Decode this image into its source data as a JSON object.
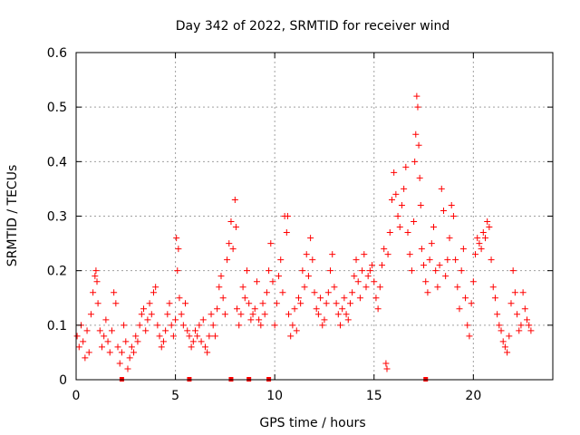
{
  "chart_data": {
    "type": "scatter",
    "title": "Day 342 of 2022, SRMTID for receiver wind",
    "xlabel": "GPS time / hours",
    "ylabel": "SRMTID / TECUs",
    "xlim": [
      0,
      24
    ],
    "ylim": [
      0,
      0.6
    ],
    "xticks": [
      0,
      5,
      10,
      15,
      20
    ],
    "yticks": [
      0,
      0.1,
      0.2,
      0.3,
      0.4,
      0.5,
      0.6
    ],
    "xtick_labels": [
      "0",
      "5",
      "10",
      "15",
      "20"
    ],
    "ytick_labels": [
      "0",
      "0.1",
      "0.2",
      "0.3",
      "0.4",
      "0.5",
      "0.6"
    ],
    "grid": true,
    "marker": "plus",
    "color": "#ff0000",
    "series": [
      {
        "name": "SRMTID",
        "points": [
          [
            0.05,
            0.08
          ],
          [
            0.15,
            0.06
          ],
          [
            0.25,
            0.1
          ],
          [
            0.35,
            0.07
          ],
          [
            0.45,
            0.04
          ],
          [
            0.55,
            0.09
          ],
          [
            0.65,
            0.05
          ],
          [
            0.75,
            0.12
          ],
          [
            0.85,
            0.16
          ],
          [
            0.95,
            0.19
          ],
          [
            1.0,
            0.2
          ],
          [
            1.05,
            0.18
          ],
          [
            1.1,
            0.14
          ],
          [
            1.2,
            0.09
          ],
          [
            1.3,
            0.06
          ],
          [
            1.4,
            0.08
          ],
          [
            1.5,
            0.11
          ],
          [
            1.6,
            0.07
          ],
          [
            1.7,
            0.05
          ],
          [
            1.8,
            0.09
          ],
          [
            1.9,
            0.16
          ],
          [
            2.0,
            0.14
          ],
          [
            2.1,
            0.06
          ],
          [
            2.2,
            0.03
          ],
          [
            2.3,
            0.05
          ],
          [
            2.4,
            0.1
          ],
          [
            2.5,
            0.07
          ],
          [
            2.6,
            0.02
          ],
          [
            2.7,
            0.04
          ],
          [
            2.8,
            0.06
          ],
          [
            2.9,
            0.05
          ],
          [
            3.0,
            0.08
          ],
          [
            3.1,
            0.07
          ],
          [
            3.2,
            0.1
          ],
          [
            3.3,
            0.12
          ],
          [
            3.4,
            0.13
          ],
          [
            3.5,
            0.09
          ],
          [
            3.6,
            0.11
          ],
          [
            3.7,
            0.14
          ],
          [
            3.8,
            0.12
          ],
          [
            3.9,
            0.16
          ],
          [
            4.0,
            0.17
          ],
          [
            4.1,
            0.1
          ],
          [
            4.2,
            0.08
          ],
          [
            4.3,
            0.06
          ],
          [
            4.4,
            0.07
          ],
          [
            4.5,
            0.09
          ],
          [
            4.6,
            0.12
          ],
          [
            4.7,
            0.14
          ],
          [
            4.8,
            0.1
          ],
          [
            4.9,
            0.08
          ],
          [
            5.0,
            0.11
          ],
          [
            5.05,
            0.26
          ],
          [
            5.1,
            0.2
          ],
          [
            5.15,
            0.24
          ],
          [
            5.2,
            0.15
          ],
          [
            5.3,
            0.12
          ],
          [
            5.4,
            0.1
          ],
          [
            5.5,
            0.14
          ],
          [
            5.6,
            0.09
          ],
          [
            5.7,
            0.08
          ],
          [
            5.8,
            0.06
          ],
          [
            5.9,
            0.07
          ],
          [
            6.0,
            0.09
          ],
          [
            6.1,
            0.08
          ],
          [
            6.2,
            0.1
          ],
          [
            6.3,
            0.07
          ],
          [
            6.4,
            0.11
          ],
          [
            6.5,
            0.06
          ],
          [
            6.6,
            0.05
          ],
          [
            6.7,
            0.08
          ],
          [
            6.8,
            0.12
          ],
          [
            6.9,
            0.1
          ],
          [
            7.0,
            0.08
          ],
          [
            7.1,
            0.13
          ],
          [
            7.2,
            0.17
          ],
          [
            7.3,
            0.19
          ],
          [
            7.4,
            0.15
          ],
          [
            7.5,
            0.12
          ],
          [
            7.6,
            0.22
          ],
          [
            7.7,
            0.25
          ],
          [
            7.8,
            0.29
          ],
          [
            7.9,
            0.24
          ],
          [
            8.0,
            0.33
          ],
          [
            8.05,
            0.28
          ],
          [
            8.1,
            0.13
          ],
          [
            8.2,
            0.1
          ],
          [
            8.3,
            0.12
          ],
          [
            8.4,
            0.17
          ],
          [
            8.5,
            0.15
          ],
          [
            8.6,
            0.2
          ],
          [
            8.7,
            0.14
          ],
          [
            8.8,
            0.11
          ],
          [
            8.9,
            0.12
          ],
          [
            9.0,
            0.13
          ],
          [
            9.1,
            0.18
          ],
          [
            9.2,
            0.11
          ],
          [
            9.3,
            0.1
          ],
          [
            9.4,
            0.14
          ],
          [
            9.5,
            0.12
          ],
          [
            9.6,
            0.16
          ],
          [
            9.7,
            0.2
          ],
          [
            9.8,
            0.25
          ],
          [
            9.9,
            0.18
          ],
          [
            10.0,
            0.1
          ],
          [
            10.1,
            0.14
          ],
          [
            10.2,
            0.19
          ],
          [
            10.3,
            0.22
          ],
          [
            10.4,
            0.16
          ],
          [
            10.5,
            0.3
          ],
          [
            10.6,
            0.27
          ],
          [
            10.65,
            0.3
          ],
          [
            10.7,
            0.12
          ],
          [
            10.8,
            0.08
          ],
          [
            10.9,
            0.1
          ],
          [
            11.0,
            0.13
          ],
          [
            11.1,
            0.09
          ],
          [
            11.2,
            0.15
          ],
          [
            11.3,
            0.14
          ],
          [
            11.4,
            0.2
          ],
          [
            11.5,
            0.17
          ],
          [
            11.6,
            0.23
          ],
          [
            11.7,
            0.19
          ],
          [
            11.8,
            0.26
          ],
          [
            11.9,
            0.22
          ],
          [
            12.0,
            0.16
          ],
          [
            12.1,
            0.13
          ],
          [
            12.2,
            0.12
          ],
          [
            12.3,
            0.15
          ],
          [
            12.4,
            0.1
          ],
          [
            12.5,
            0.11
          ],
          [
            12.6,
            0.14
          ],
          [
            12.7,
            0.16
          ],
          [
            12.8,
            0.2
          ],
          [
            12.9,
            0.23
          ],
          [
            13.0,
            0.17
          ],
          [
            13.1,
            0.14
          ],
          [
            13.2,
            0.12
          ],
          [
            13.3,
            0.1
          ],
          [
            13.4,
            0.13
          ],
          [
            13.5,
            0.15
          ],
          [
            13.6,
            0.12
          ],
          [
            13.7,
            0.11
          ],
          [
            13.8,
            0.14
          ],
          [
            13.9,
            0.16
          ],
          [
            14.0,
            0.19
          ],
          [
            14.1,
            0.22
          ],
          [
            14.2,
            0.18
          ],
          [
            14.3,
            0.15
          ],
          [
            14.4,
            0.2
          ],
          [
            14.5,
            0.23
          ],
          [
            14.6,
            0.17
          ],
          [
            14.7,
            0.19
          ],
          [
            14.8,
            0.2
          ],
          [
            14.9,
            0.21
          ],
          [
            15.0,
            0.18
          ],
          [
            15.1,
            0.15
          ],
          [
            15.2,
            0.13
          ],
          [
            15.3,
            0.17
          ],
          [
            15.4,
            0.21
          ],
          [
            15.5,
            0.24
          ],
          [
            15.6,
            0.03
          ],
          [
            15.65,
            0.02
          ],
          [
            15.7,
            0.23
          ],
          [
            15.8,
            0.27
          ],
          [
            15.9,
            0.33
          ],
          [
            16.0,
            0.38
          ],
          [
            16.1,
            0.34
          ],
          [
            16.2,
            0.3
          ],
          [
            16.3,
            0.28
          ],
          [
            16.4,
            0.32
          ],
          [
            16.5,
            0.35
          ],
          [
            16.6,
            0.39
          ],
          [
            16.7,
            0.27
          ],
          [
            16.8,
            0.23
          ],
          [
            16.9,
            0.2
          ],
          [
            17.0,
            0.29
          ],
          [
            17.05,
            0.4
          ],
          [
            17.1,
            0.45
          ],
          [
            17.15,
            0.52
          ],
          [
            17.2,
            0.5
          ],
          [
            17.25,
            0.43
          ],
          [
            17.3,
            0.37
          ],
          [
            17.35,
            0.32
          ],
          [
            17.4,
            0.24
          ],
          [
            17.5,
            0.21
          ],
          [
            17.6,
            0.18
          ],
          [
            17.7,
            0.16
          ],
          [
            17.8,
            0.22
          ],
          [
            17.9,
            0.25
          ],
          [
            18.0,
            0.28
          ],
          [
            18.1,
            0.2
          ],
          [
            18.2,
            0.17
          ],
          [
            18.3,
            0.21
          ],
          [
            18.4,
            0.35
          ],
          [
            18.5,
            0.31
          ],
          [
            18.6,
            0.19
          ],
          [
            18.7,
            0.22
          ],
          [
            18.8,
            0.26
          ],
          [
            18.9,
            0.32
          ],
          [
            19.0,
            0.3
          ],
          [
            19.1,
            0.22
          ],
          [
            19.2,
            0.17
          ],
          [
            19.3,
            0.13
          ],
          [
            19.4,
            0.2
          ],
          [
            19.5,
            0.24
          ],
          [
            19.6,
            0.15
          ],
          [
            19.7,
            0.1
          ],
          [
            19.8,
            0.08
          ],
          [
            19.9,
            0.14
          ],
          [
            20.0,
            0.18
          ],
          [
            20.1,
            0.23
          ],
          [
            20.2,
            0.26
          ],
          [
            20.3,
            0.25
          ],
          [
            20.4,
            0.24
          ],
          [
            20.5,
            0.27
          ],
          [
            20.6,
            0.26
          ],
          [
            20.7,
            0.29
          ],
          [
            20.8,
            0.28
          ],
          [
            20.9,
            0.22
          ],
          [
            21.0,
            0.17
          ],
          [
            21.1,
            0.15
          ],
          [
            21.2,
            0.12
          ],
          [
            21.3,
            0.1
          ],
          [
            21.4,
            0.09
          ],
          [
            21.5,
            0.07
          ],
          [
            21.6,
            0.06
          ],
          [
            21.7,
            0.05
          ],
          [
            21.8,
            0.08
          ],
          [
            21.9,
            0.14
          ],
          [
            22.0,
            0.2
          ],
          [
            22.1,
            0.16
          ],
          [
            22.2,
            0.12
          ],
          [
            22.3,
            0.09
          ],
          [
            22.4,
            0.1
          ],
          [
            22.5,
            0.16
          ],
          [
            22.6,
            0.13
          ],
          [
            22.7,
            0.11
          ],
          [
            22.8,
            0.1
          ],
          [
            22.9,
            0.09
          ]
        ]
      }
    ],
    "zero_markers_x": [
      2.3,
      5.7,
      7.8,
      8.7,
      9.7,
      17.6
    ]
  }
}
